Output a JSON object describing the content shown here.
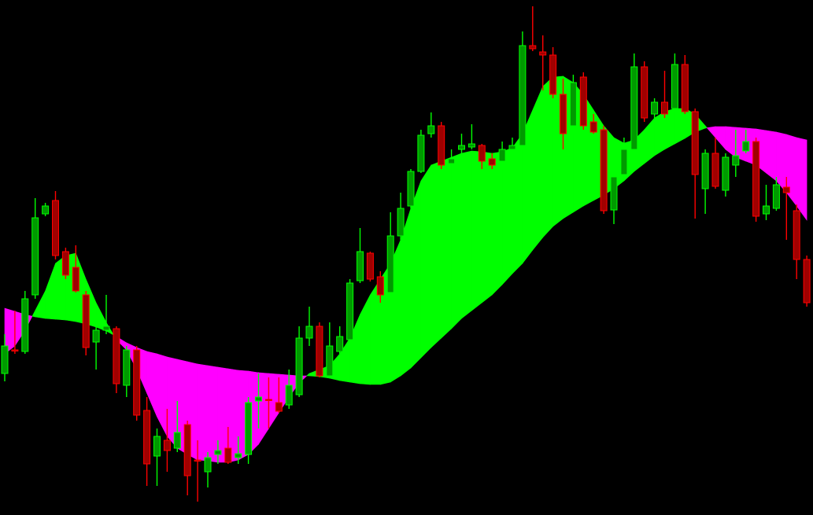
{
  "chart_data": {
    "type": "candlestick",
    "background": "#000000",
    "ylim": [
      0,
      655
    ],
    "up_color": {
      "body": "#009a00",
      "edge": "#00ff00"
    },
    "down_color": {
      "body": "#a00000",
      "edge": "#ff0000"
    },
    "open": [
      180,
      210,
      208,
      280,
      383,
      400,
      335,
      315,
      280,
      220,
      235,
      237,
      165,
      210,
      133,
      75,
      95,
      85,
      115,
      70,
      55,
      77,
      85,
      73,
      77,
      145,
      147,
      143,
      140,
      153,
      225,
      240,
      177,
      208,
      223,
      298,
      333,
      303,
      283,
      355,
      393,
      437,
      485,
      495,
      447,
      465,
      468,
      470,
      453,
      450,
      465,
      470,
      597,
      589,
      585,
      535,
      495,
      557,
      500,
      490,
      388,
      433,
      465,
      570,
      510,
      525,
      517,
      573,
      513,
      415,
      460,
      413,
      445,
      463,
      475,
      383,
      390,
      417,
      387,
      325
    ],
    "high": [
      230,
      260,
      285,
      403,
      397,
      412,
      340,
      343,
      285,
      255,
      280,
      240,
      215,
      215,
      150,
      110,
      135,
      145,
      120,
      95,
      80,
      95,
      112,
      100,
      150,
      180,
      175,
      175,
      185,
      240,
      265,
      245,
      245,
      240,
      300,
      365,
      335,
      310,
      385,
      410,
      440,
      490,
      512,
      500,
      465,
      485,
      497,
      472,
      460,
      475,
      480,
      615,
      647,
      610,
      595,
      555,
      560,
      563,
      510,
      495,
      440,
      480,
      587,
      577,
      530,
      565,
      587,
      585,
      517,
      465,
      480,
      460,
      490,
      490,
      480,
      420,
      430,
      430,
      395,
      330
    ],
    "low": [
      170,
      205,
      205,
      275,
      380,
      325,
      300,
      283,
      203,
      185,
      230,
      155,
      150,
      120,
      37,
      37,
      55,
      80,
      25,
      17,
      35,
      65,
      65,
      65,
      65,
      110,
      110,
      130,
      135,
      150,
      215,
      175,
      175,
      205,
      215,
      295,
      297,
      270,
      280,
      350,
      390,
      435,
      480,
      440,
      445,
      460,
      465,
      440,
      440,
      440,
      460,
      465,
      590,
      540,
      530,
      465,
      485,
      490,
      485,
      383,
      370,
      430,
      460,
      500,
      505,
      505,
      513,
      510,
      377,
      383,
      415,
      405,
      430,
      460,
      373,
      375,
      387,
      350,
      300,
      265
    ],
    "close": [
      215,
      209,
      275,
      378,
      393,
      330,
      305,
      285,
      213,
      235,
      240,
      167,
      210,
      127,
      65,
      100,
      82,
      105,
      50,
      70,
      73,
      82,
      67,
      78,
      143,
      150,
      147,
      132,
      165,
      225,
      240,
      177,
      215,
      227,
      295,
      335,
      300,
      280,
      355,
      390,
      437,
      483,
      495,
      445,
      453,
      470,
      472,
      450,
      445,
      465,
      470,
      597,
      593,
      585,
      535,
      485,
      550,
      495,
      487,
      387,
      430,
      465,
      570,
      505,
      525,
      510,
      573,
      513,
      433,
      460,
      418,
      455,
      457,
      475,
      380,
      393,
      420,
      410,
      325,
      270
    ],
    "cloud": {
      "up_color": "#00ff00",
      "down_color": "#ff00ff",
      "fast": [
        205,
        215,
        235,
        260,
        285,
        320,
        330,
        333,
        300,
        270,
        245,
        223,
        210,
        185,
        155,
        125,
        100,
        85,
        77,
        70,
        69,
        67,
        67,
        70,
        77,
        90,
        110,
        130,
        150,
        168,
        180,
        185,
        190,
        205,
        225,
        255,
        280,
        300,
        320,
        350,
        390,
        425,
        445,
        450,
        455,
        460,
        463,
        462,
        460,
        462,
        467,
        485,
        515,
        545,
        557,
        558,
        550,
        535,
        515,
        495,
        480,
        473,
        477,
        490,
        505,
        513,
        517,
        517,
        510,
        495,
        480,
        465,
        455,
        450,
        445,
        435,
        425,
        410,
        393,
        375
      ],
      "slow": [
        263,
        259,
        255,
        252,
        250,
        249,
        248,
        246,
        243,
        239,
        234,
        227,
        219,
        213,
        208,
        205,
        201,
        198,
        195,
        192,
        190,
        188,
        186,
        184,
        183,
        181,
        180,
        179,
        178,
        177,
        177,
        176,
        174,
        171,
        169,
        167,
        166,
        166,
        169,
        177,
        187,
        200,
        213,
        225,
        237,
        250,
        260,
        270,
        280,
        293,
        307,
        320,
        337,
        353,
        367,
        377,
        385,
        393,
        400,
        407,
        415,
        425,
        437,
        447,
        457,
        465,
        472,
        479,
        487,
        492,
        494,
        494,
        493,
        492,
        491,
        489,
        487,
        484,
        480,
        477
      ]
    }
  }
}
